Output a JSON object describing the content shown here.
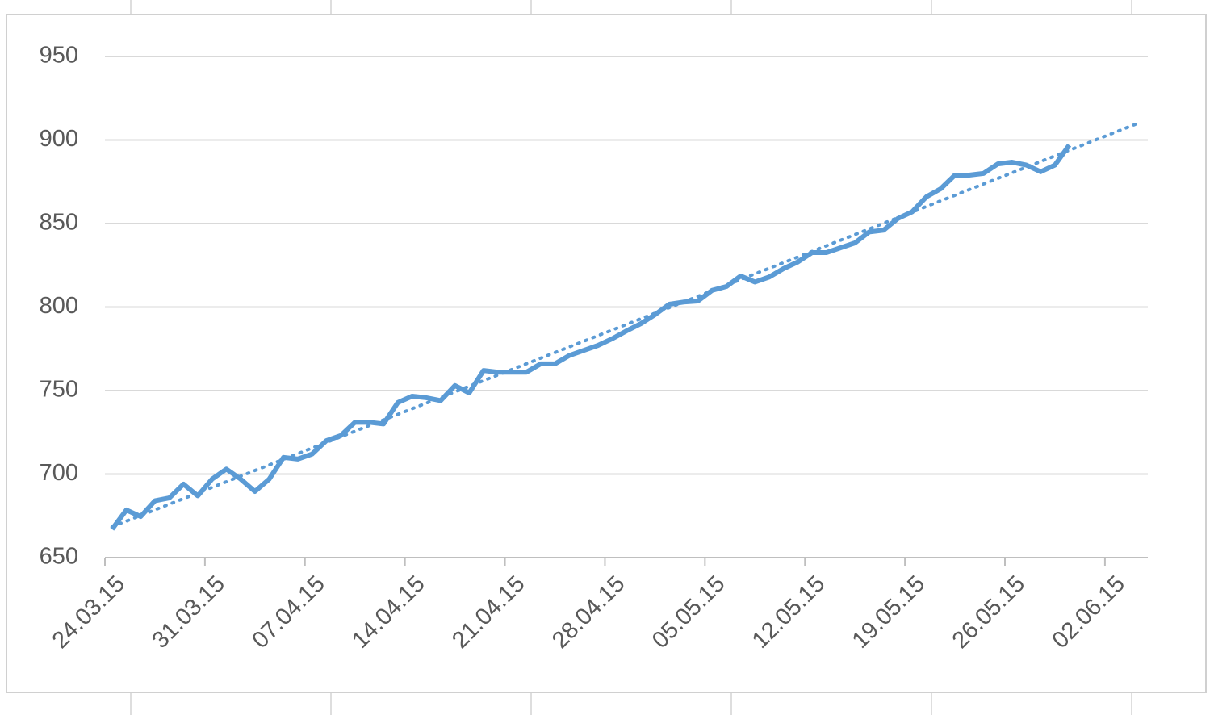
{
  "chart_data": {
    "type": "line",
    "x": [
      "24.03.15",
      "25.03.15",
      "26.03.15",
      "27.03.15",
      "28.03.15",
      "29.03.15",
      "30.03.15",
      "31.03.15",
      "01.04.15",
      "02.04.15",
      "03.04.15",
      "04.04.15",
      "05.04.15",
      "06.04.15",
      "07.04.15",
      "08.04.15",
      "09.04.15",
      "10.04.15",
      "11.04.15",
      "12.04.15",
      "13.04.15",
      "14.04.15",
      "15.04.15",
      "16.04.15",
      "17.04.15",
      "18.04.15",
      "19.04.15",
      "20.04.15",
      "21.04.15",
      "22.04.15",
      "23.04.15",
      "24.04.15",
      "25.04.15",
      "26.04.15",
      "27.04.15",
      "28.04.15",
      "29.04.15",
      "30.04.15",
      "01.05.15",
      "02.05.15",
      "03.05.15",
      "04.05.15",
      "05.05.15",
      "06.05.15",
      "07.05.15",
      "08.05.15",
      "09.05.15",
      "10.05.15",
      "11.05.15",
      "12.05.15",
      "13.05.15",
      "14.05.15",
      "15.05.15",
      "16.05.15",
      "17.05.15",
      "18.05.15",
      "19.05.15",
      "20.05.15",
      "21.05.15",
      "22.05.15",
      "23.05.15",
      "24.05.15",
      "25.05.15",
      "26.05.15",
      "27.05.15",
      "28.05.15",
      "29.05.15",
      "30.05.15"
    ],
    "series": [
      {
        "color": "#5b9bd5",
        "values": [
          667,
          678.5,
          674.6,
          684,
          685.7,
          694,
          687,
          697,
          703,
          697,
          689.6,
          697,
          710,
          709,
          712,
          720,
          723,
          731,
          731,
          730,
          742.8,
          746.6,
          745.7,
          744,
          753,
          748.6,
          762,
          761,
          761,
          761,
          766,
          766,
          771,
          774,
          777,
          781,
          785.7,
          790,
          795.4,
          801.7,
          803,
          803.6,
          810,
          812.3,
          818.6,
          815,
          818,
          823,
          827,
          832.6,
          832.6,
          835.5,
          838.4,
          845,
          846,
          853,
          857,
          866,
          870.8,
          879,
          879,
          880,
          885.7,
          886.7,
          885,
          881,
          885,
          897
        ],
        "trendline": {
          "type": "linear",
          "forward": 5,
          "style": "dotted"
        }
      }
    ],
    "xlim": [
      "24.03.15",
      "05.06.15"
    ],
    "xticks": [
      "24.03.15",
      "31.03.15",
      "07.04.15",
      "14.04.15",
      "21.04.15",
      "28.04.15",
      "05.05.15",
      "12.05.15",
      "19.05.15",
      "26.05.15",
      "02.06.15"
    ],
    "ylim": [
      650,
      950
    ],
    "yticks": [
      650,
      700,
      750,
      800,
      850,
      900,
      950
    ],
    "grid": true
  }
}
